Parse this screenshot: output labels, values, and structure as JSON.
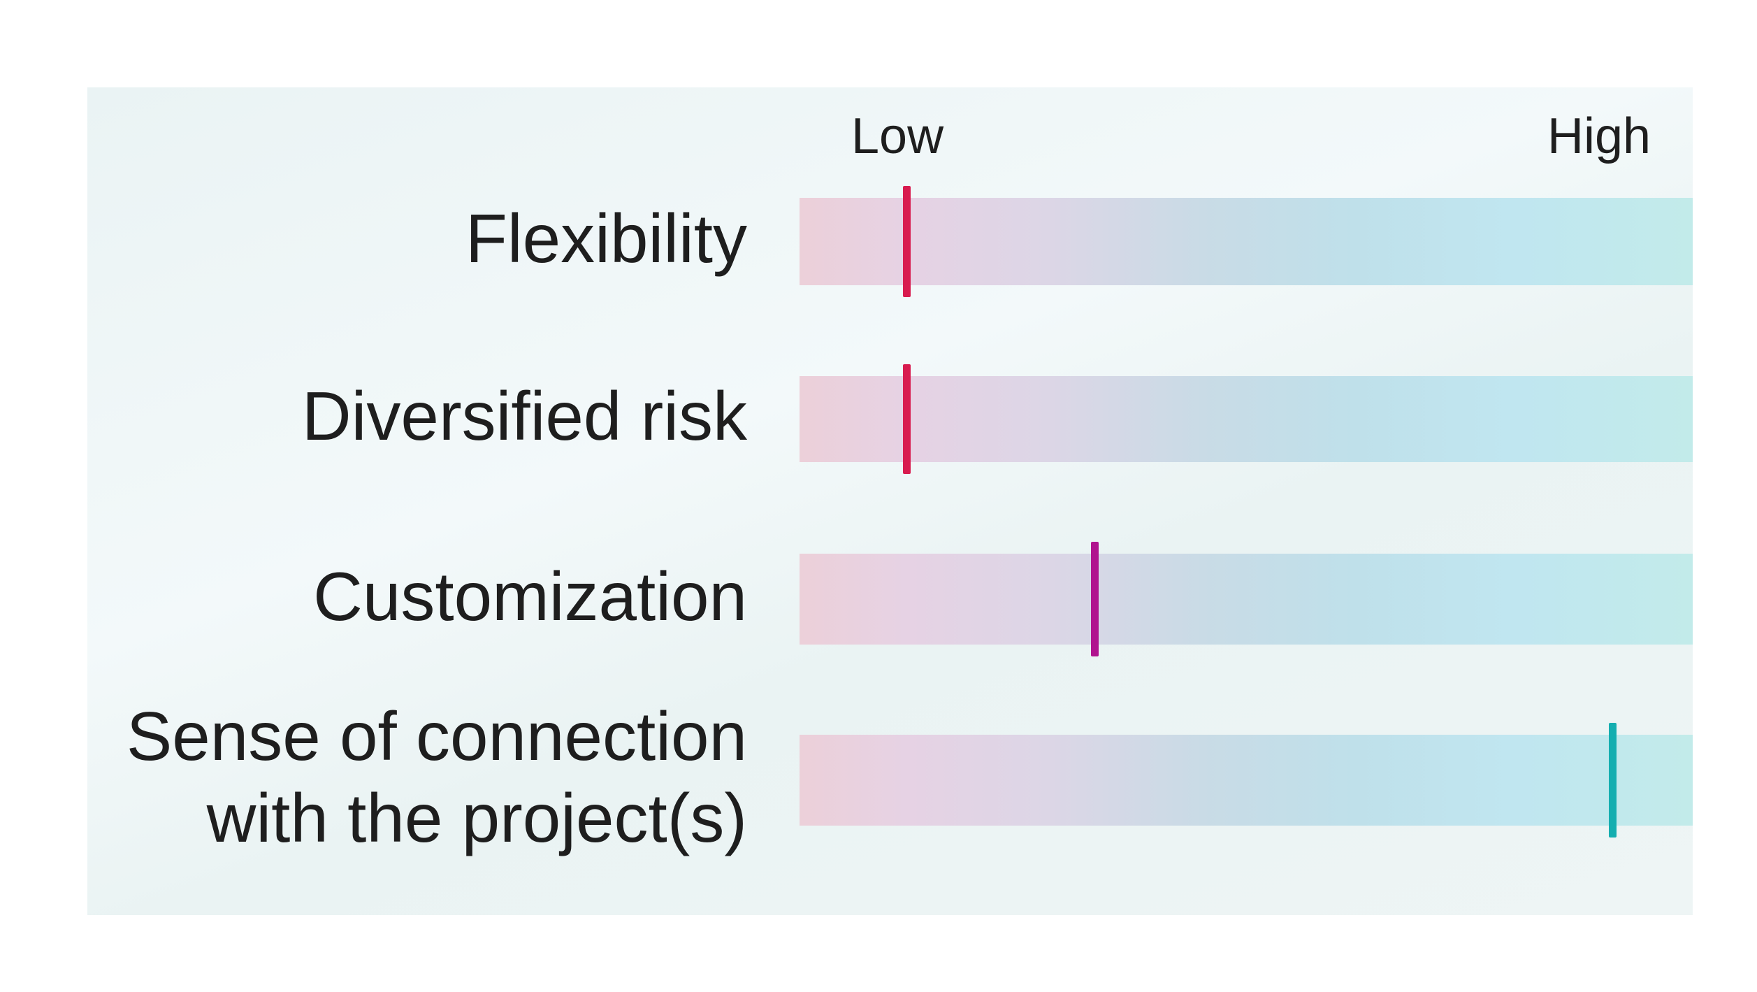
{
  "chart_data": {
    "type": "bar",
    "title": "",
    "scale_labels": {
      "low": "Low",
      "high": "High"
    },
    "xlim": [
      0,
      1
    ],
    "categories": [
      "Flexibility",
      "Diversified risk",
      "Customization",
      "Sense of connection with the project(s)"
    ],
    "category_lines": [
      [
        "Flexibility"
      ],
      [
        "Diversified risk"
      ],
      [
        "Customization"
      ],
      [
        "Sense of connection",
        "with the project(s)"
      ]
    ],
    "values": [
      0.12,
      0.12,
      0.33,
      0.91
    ],
    "marker_colors": [
      "#d81b4f",
      "#d81b4f",
      "#b0138e",
      "#14aeb0"
    ],
    "bar_gradient": [
      "#ecd0d9",
      "#dcd6e6",
      "#bfe0ea",
      "#c2ebea"
    ]
  }
}
